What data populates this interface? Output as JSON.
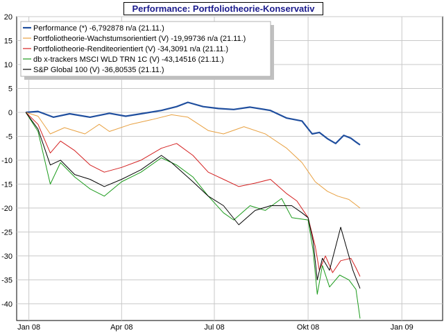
{
  "chart_data": {
    "type": "line",
    "title": "Performance: Portfoliotheorie-Konservativ",
    "xlabel": "",
    "ylabel": "",
    "x_range": [
      "2007-12-20",
      "2009-02-10"
    ],
    "ylim": [
      -43.5,
      20
    ],
    "yticks": [
      20,
      15,
      10,
      5,
      0,
      -5,
      -10,
      -15,
      -20,
      -25,
      -30,
      -35,
      -40
    ],
    "xticks": [
      {
        "date": "2008-01-01",
        "label": "Jan 08"
      },
      {
        "date": "2008-04-01",
        "label": "Apr 08"
      },
      {
        "date": "2008-07-01",
        "label": "Jul 08"
      },
      {
        "date": "2008-10-01",
        "label": "Okt 08"
      },
      {
        "date": "2009-01-01",
        "label": "Jan 09"
      }
    ],
    "grid": true,
    "legend_position": "top-left",
    "series": [
      {
        "name": "Performance (*) -6,792878 n/a (21.11.)",
        "color": "#1f4e9e",
        "points": [
          [
            "2007-12-29",
            0.0
          ],
          [
            "2008-01-10",
            0.2
          ],
          [
            "2008-01-25",
            -1.0
          ],
          [
            "2008-02-10",
            -0.3
          ],
          [
            "2008-03-01",
            -1.0
          ],
          [
            "2008-03-20",
            -0.2
          ],
          [
            "2008-04-05",
            -0.8
          ],
          [
            "2008-04-20",
            -0.3
          ],
          [
            "2008-05-10",
            0.4
          ],
          [
            "2008-05-25",
            1.2
          ],
          [
            "2008-06-05",
            2.1
          ],
          [
            "2008-06-20",
            1.2
          ],
          [
            "2008-07-05",
            0.8
          ],
          [
            "2008-07-20",
            0.6
          ],
          [
            "2008-08-05",
            1.1
          ],
          [
            "2008-08-25",
            0.4
          ],
          [
            "2008-09-10",
            -1.2
          ],
          [
            "2008-09-25",
            -1.8
          ],
          [
            "2008-10-05",
            -4.5
          ],
          [
            "2008-10-12",
            -4.2
          ],
          [
            "2008-10-20",
            -5.5
          ],
          [
            "2008-10-28",
            -6.5
          ],
          [
            "2008-11-05",
            -4.8
          ],
          [
            "2008-11-12",
            -5.4
          ],
          [
            "2008-11-17",
            -6.2
          ],
          [
            "2008-11-21",
            -6.8
          ]
        ]
      },
      {
        "name": "Portfoliotheorie-Wachstumsorientiert (V) -19,99736 n/a (21.11.)",
        "color": "#e8a040",
        "points": [
          [
            "2007-12-29",
            0.0
          ],
          [
            "2008-01-10",
            -0.8
          ],
          [
            "2008-01-22",
            -4.5
          ],
          [
            "2008-02-05",
            -3.2
          ],
          [
            "2008-02-25",
            -4.5
          ],
          [
            "2008-03-10",
            -2.5
          ],
          [
            "2008-03-20",
            -4.0
          ],
          [
            "2008-04-10",
            -2.5
          ],
          [
            "2008-05-01",
            -1.5
          ],
          [
            "2008-05-20",
            -0.5
          ],
          [
            "2008-06-05",
            -1.0
          ],
          [
            "2008-06-25",
            -3.8
          ],
          [
            "2008-07-10",
            -4.5
          ],
          [
            "2008-07-30",
            -3.0
          ],
          [
            "2008-08-20",
            -4.5
          ],
          [
            "2008-09-10",
            -7.5
          ],
          [
            "2008-09-25",
            -10.5
          ],
          [
            "2008-10-08",
            -14.5
          ],
          [
            "2008-10-20",
            -16.5
          ],
          [
            "2008-10-30",
            -17.5
          ],
          [
            "2008-11-10",
            -18.2
          ],
          [
            "2008-11-21",
            -20.0
          ]
        ]
      },
      {
        "name": "Portfoliotheorie-Renditeorientiert (V) -34,3091 n/a (21.11.)",
        "color": "#d42020",
        "points": [
          [
            "2007-12-29",
            0.0
          ],
          [
            "2008-01-10",
            -2.5
          ],
          [
            "2008-01-22",
            -8.5
          ],
          [
            "2008-02-01",
            -6.0
          ],
          [
            "2008-02-15",
            -8.0
          ],
          [
            "2008-03-01",
            -11.0
          ],
          [
            "2008-03-15",
            -12.5
          ],
          [
            "2008-04-01",
            -11.5
          ],
          [
            "2008-04-20",
            -10.0
          ],
          [
            "2008-05-10",
            -7.5
          ],
          [
            "2008-05-25",
            -6.5
          ],
          [
            "2008-06-10",
            -9.0
          ],
          [
            "2008-06-25",
            -12.5
          ],
          [
            "2008-07-10",
            -14.0
          ],
          [
            "2008-07-25",
            -15.5
          ],
          [
            "2008-08-10",
            -14.8
          ],
          [
            "2008-08-25",
            -14.0
          ],
          [
            "2008-09-10",
            -17.0
          ],
          [
            "2008-09-20",
            -18.5
          ],
          [
            "2008-10-01",
            -22.0
          ],
          [
            "2008-10-08",
            -28.0
          ],
          [
            "2008-10-12",
            -33.0
          ],
          [
            "2008-10-18",
            -30.0
          ],
          [
            "2008-10-25",
            -33.5
          ],
          [
            "2008-11-02",
            -31.0
          ],
          [
            "2008-11-12",
            -30.5
          ],
          [
            "2008-11-17",
            -32.5
          ],
          [
            "2008-11-21",
            -34.3
          ]
        ]
      },
      {
        "name": "db x-trackers MSCI WLD TRN 1C (V) -43,14516 (21.11.)",
        "color": "#1a9a1a",
        "points": [
          [
            "2007-12-29",
            0.0
          ],
          [
            "2008-01-10",
            -4.0
          ],
          [
            "2008-01-22",
            -15.0
          ],
          [
            "2008-02-01",
            -10.5
          ],
          [
            "2008-02-15",
            -13.5
          ],
          [
            "2008-03-01",
            -16.0
          ],
          [
            "2008-03-15",
            -17.5
          ],
          [
            "2008-04-01",
            -14.5
          ],
          [
            "2008-04-20",
            -12.5
          ],
          [
            "2008-05-10",
            -9.5
          ],
          [
            "2008-05-25",
            -11.0
          ],
          [
            "2008-06-10",
            -13.5
          ],
          [
            "2008-06-25",
            -17.5
          ],
          [
            "2008-07-10",
            -21.0
          ],
          [
            "2008-07-20",
            -22.5
          ],
          [
            "2008-08-05",
            -19.5
          ],
          [
            "2008-08-20",
            -20.5
          ],
          [
            "2008-09-05",
            -18.0
          ],
          [
            "2008-09-15",
            -22.0
          ],
          [
            "2008-10-01",
            -22.5
          ],
          [
            "2008-10-06",
            -29.0
          ],
          [
            "2008-10-10",
            -38.0
          ],
          [
            "2008-10-15",
            -32.0
          ],
          [
            "2008-10-22",
            -36.5
          ],
          [
            "2008-11-01",
            -34.0
          ],
          [
            "2008-11-10",
            -35.0
          ],
          [
            "2008-11-17",
            -37.0
          ],
          [
            "2008-11-21",
            -43.1
          ]
        ]
      },
      {
        "name": "S&P Global 100 (V) -36,80535 (21.11.)",
        "color": "#000000",
        "points": [
          [
            "2007-12-29",
            0.0
          ],
          [
            "2008-01-10",
            -3.5
          ],
          [
            "2008-01-22",
            -11.0
          ],
          [
            "2008-02-01",
            -10.0
          ],
          [
            "2008-02-15",
            -13.0
          ],
          [
            "2008-03-01",
            -14.0
          ],
          [
            "2008-03-15",
            -15.5
          ],
          [
            "2008-04-01",
            -14.0
          ],
          [
            "2008-04-20",
            -12.0
          ],
          [
            "2008-05-10",
            -9.0
          ],
          [
            "2008-05-20",
            -10.5
          ],
          [
            "2008-06-10",
            -14.5
          ],
          [
            "2008-06-25",
            -17.5
          ],
          [
            "2008-07-10",
            -19.5
          ],
          [
            "2008-07-25",
            -23.5
          ],
          [
            "2008-08-10",
            -20.5
          ],
          [
            "2008-08-25",
            -19.5
          ],
          [
            "2008-09-15",
            -19.5
          ],
          [
            "2008-09-25",
            -21.0
          ],
          [
            "2008-10-01",
            -22.0
          ],
          [
            "2008-10-06",
            -27.0
          ],
          [
            "2008-10-10",
            -35.0
          ],
          [
            "2008-10-15",
            -30.5
          ],
          [
            "2008-10-22",
            -33.0
          ],
          [
            "2008-11-02",
            -24.0
          ],
          [
            "2008-11-08",
            -28.5
          ],
          [
            "2008-11-14",
            -33.0
          ],
          [
            "2008-11-21",
            -36.8
          ]
        ]
      }
    ]
  }
}
